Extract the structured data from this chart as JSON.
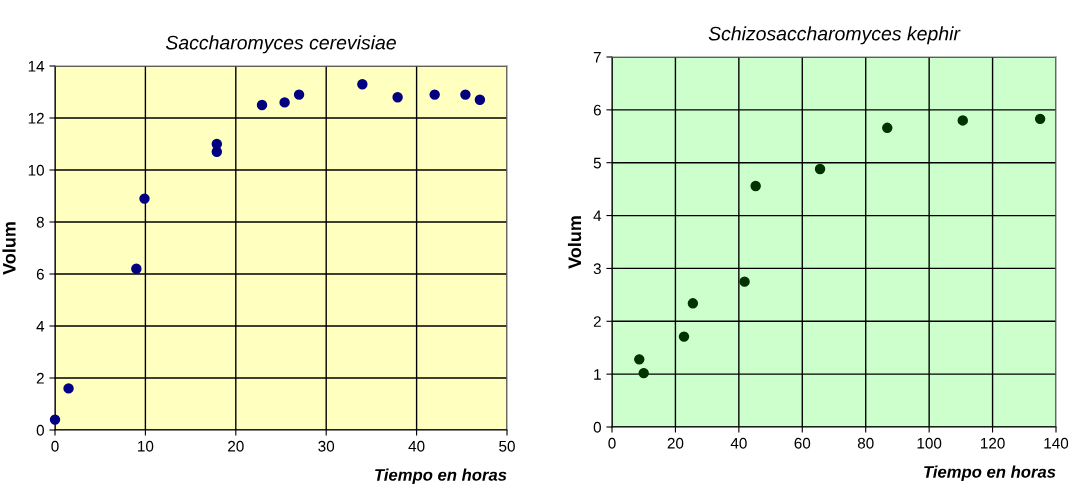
{
  "chart_data": [
    {
      "type": "scatter",
      "title": "Saccharomyces cerevisiae",
      "xlabel": "Tiempo en horas",
      "ylabel": "Volum",
      "marker": "circle",
      "grid": true,
      "x": [
        0,
        1.5,
        9.0,
        9.9,
        17.9,
        17.9,
        22.9,
        25.4,
        27.0,
        34.0,
        37.9,
        42.0,
        45.4,
        47.0
      ],
      "series": [
        {
          "color": "#000080",
          "values": [
            0.4,
            1.6,
            6.2,
            8.9,
            11.0,
            10.7,
            12.5,
            12.6,
            12.9,
            13.3,
            12.8,
            12.9,
            12.9,
            12.7
          ]
        }
      ],
      "xlim": [
        0,
        50
      ],
      "xticks": [
        0,
        10,
        20,
        30,
        40,
        50
      ],
      "ylim": [
        0,
        14
      ],
      "yticks": [
        0,
        2,
        4,
        6,
        8,
        10,
        12,
        14
      ]
    },
    {
      "type": "scatter",
      "title": "Schizosaccharomyces kephir",
      "xlabel": "Tiempo en horas",
      "ylabel": "Volum",
      "marker": "circle",
      "grid": true,
      "x": [
        8.6,
        10.0,
        22.7,
        25.5,
        41.8,
        45.3,
        65.6,
        86.8,
        110.6,
        135.0
      ],
      "series": [
        {
          "color": "#003300",
          "values": [
            1.28,
            1.02,
            1.71,
            2.34,
            2.75,
            4.56,
            4.88,
            5.66,
            5.8,
            5.83
          ]
        }
      ],
      "xlim": [
        0,
        140
      ],
      "xticks": [
        0,
        20,
        40,
        60,
        80,
        100,
        120,
        140
      ],
      "ylim": [
        0,
        7
      ],
      "yticks": [
        0,
        1,
        2,
        3,
        4,
        5,
        6,
        7
      ]
    }
  ]
}
